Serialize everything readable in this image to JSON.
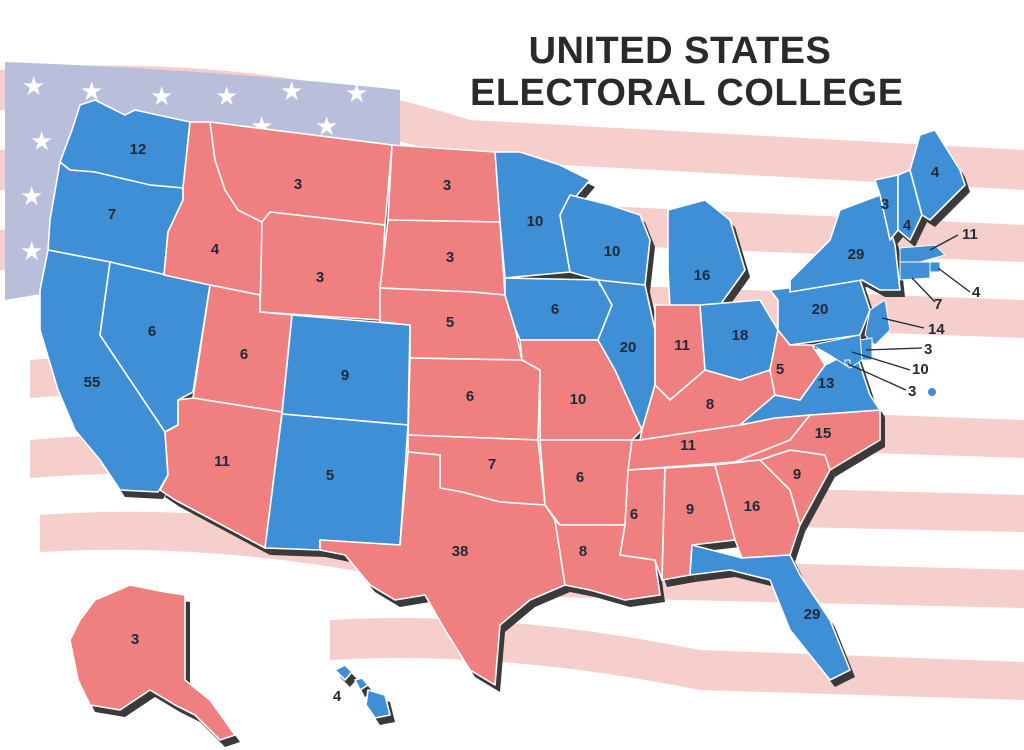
{
  "title": {
    "line1": "UNITED STATES",
    "line2": "ELECTORAL COLLEGE"
  },
  "colors": {
    "blue": "#3f8fd6",
    "red": "#f07f7f",
    "flag_stripe": "#f6cfcc",
    "flag_canton": "#b9bedb",
    "shadow": "#3a3a3a"
  },
  "states": [
    {
      "id": "WA",
      "party": "blue",
      "votes": "12"
    },
    {
      "id": "OR",
      "party": "blue",
      "votes": "7"
    },
    {
      "id": "CA",
      "party": "blue",
      "votes": "55"
    },
    {
      "id": "NV",
      "party": "blue",
      "votes": "6"
    },
    {
      "id": "ID",
      "party": "red",
      "votes": "4"
    },
    {
      "id": "MT",
      "party": "red",
      "votes": "3"
    },
    {
      "id": "WY",
      "party": "red",
      "votes": "3"
    },
    {
      "id": "UT",
      "party": "red",
      "votes": "6"
    },
    {
      "id": "AZ",
      "party": "red",
      "votes": "11"
    },
    {
      "id": "CO",
      "party": "blue",
      "votes": "9"
    },
    {
      "id": "NM",
      "party": "blue",
      "votes": "5"
    },
    {
      "id": "ND",
      "party": "red",
      "votes": "3"
    },
    {
      "id": "SD",
      "party": "red",
      "votes": "3"
    },
    {
      "id": "NE",
      "party": "red",
      "votes": "5"
    },
    {
      "id": "KS",
      "party": "red",
      "votes": "6"
    },
    {
      "id": "OK",
      "party": "red",
      "votes": "7"
    },
    {
      "id": "TX",
      "party": "red",
      "votes": "38"
    },
    {
      "id": "MN",
      "party": "blue",
      "votes": "10"
    },
    {
      "id": "IA",
      "party": "blue",
      "votes": "6"
    },
    {
      "id": "MO",
      "party": "red",
      "votes": "10"
    },
    {
      "id": "AR",
      "party": "red",
      "votes": "6"
    },
    {
      "id": "LA",
      "party": "red",
      "votes": "8"
    },
    {
      "id": "WI",
      "party": "blue",
      "votes": "10"
    },
    {
      "id": "IL",
      "party": "blue",
      "votes": "20"
    },
    {
      "id": "MI",
      "party": "blue",
      "votes": "16"
    },
    {
      "id": "IN",
      "party": "red",
      "votes": "11"
    },
    {
      "id": "OH",
      "party": "blue",
      "votes": "18"
    },
    {
      "id": "KY",
      "party": "red",
      "votes": "8"
    },
    {
      "id": "TN",
      "party": "red",
      "votes": "11"
    },
    {
      "id": "MS",
      "party": "red",
      "votes": "6"
    },
    {
      "id": "AL",
      "party": "red",
      "votes": "9"
    },
    {
      "id": "GA",
      "party": "red",
      "votes": "16"
    },
    {
      "id": "FL",
      "party": "blue",
      "votes": "29"
    },
    {
      "id": "SC",
      "party": "red",
      "votes": "9"
    },
    {
      "id": "NC",
      "party": "red",
      "votes": "15"
    },
    {
      "id": "VA",
      "party": "blue",
      "votes": "13"
    },
    {
      "id": "WV",
      "party": "red",
      "votes": "5"
    },
    {
      "id": "PA",
      "party": "blue",
      "votes": "20"
    },
    {
      "id": "NY",
      "party": "blue",
      "votes": "29"
    },
    {
      "id": "VT",
      "party": "blue",
      "votes": "3"
    },
    {
      "id": "NH",
      "party": "blue",
      "votes": "4"
    },
    {
      "id": "ME",
      "party": "blue",
      "votes": "4"
    },
    {
      "id": "AK",
      "party": "red",
      "votes": "3"
    },
    {
      "id": "HI",
      "party": "blue",
      "votes": "4"
    }
  ],
  "callouts": [
    {
      "id": "MA",
      "party": "blue",
      "votes": "11"
    },
    {
      "id": "RI",
      "party": "blue",
      "votes": "4"
    },
    {
      "id": "CT",
      "party": "blue",
      "votes": "7"
    },
    {
      "id": "NJ",
      "party": "blue",
      "votes": "14"
    },
    {
      "id": "DE",
      "party": "blue",
      "votes": "3"
    },
    {
      "id": "MD",
      "party": "blue",
      "votes": "10"
    },
    {
      "id": "DC",
      "party": "blue",
      "votes": "3"
    }
  ]
}
